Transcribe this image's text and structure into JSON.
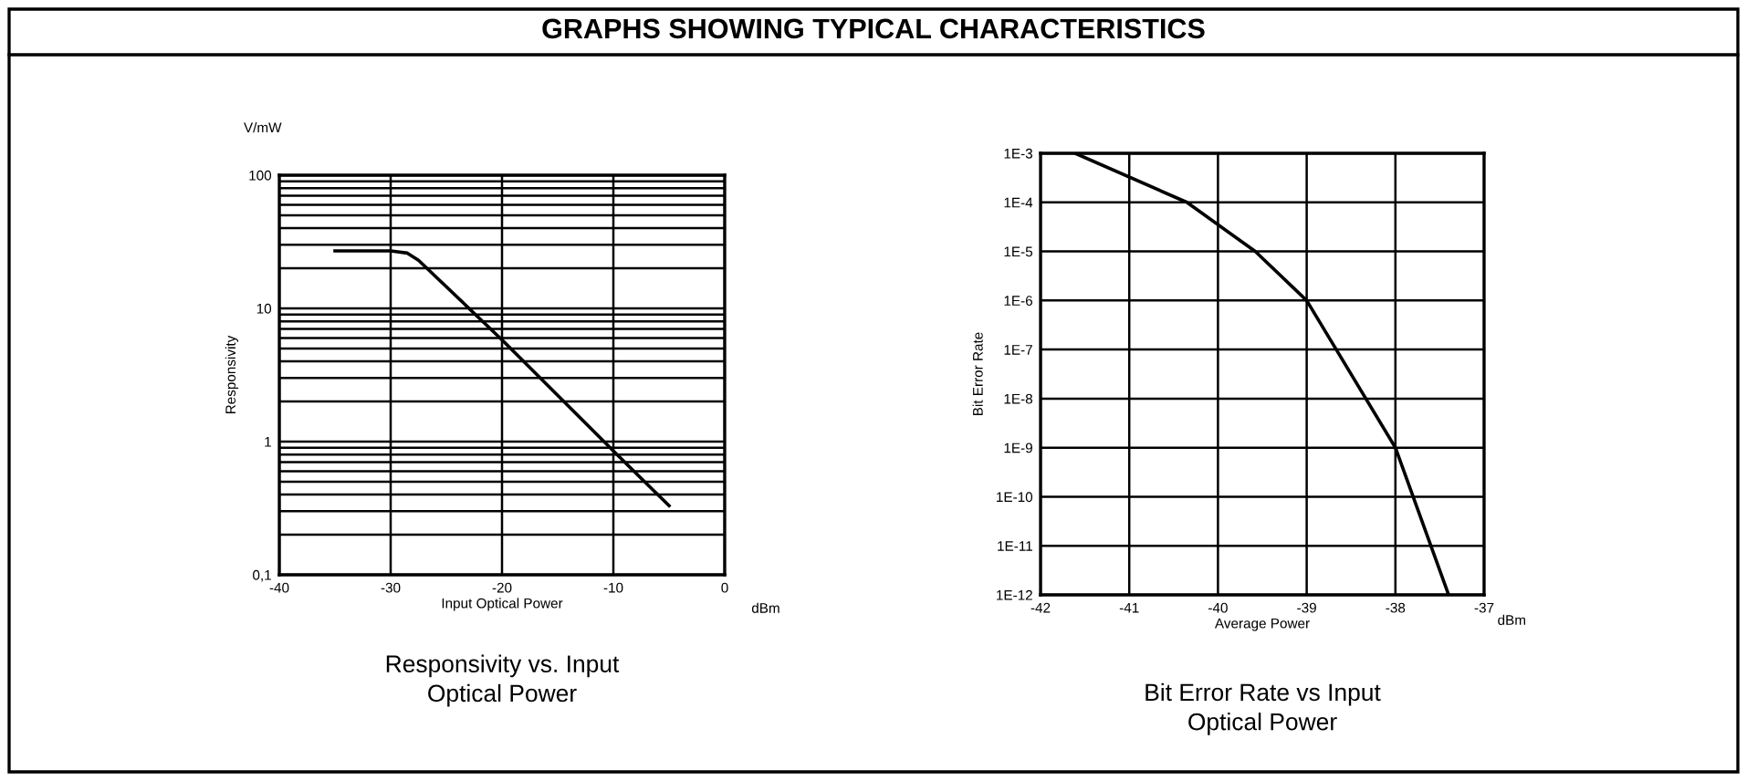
{
  "chart_data": [
    {
      "type": "line",
      "title": "Responsivity vs. Input\nOptical Power",
      "xlabel": "Input Optical Power",
      "ylabel": "Responsivity",
      "annotations": [
        "GRAPHS SHOWING TYPICAL CHARACTERISTICS",
        "V/mW",
        "dBm"
      ],
      "x": [
        -35,
        -30,
        -28.5,
        -27.5,
        -20,
        -10,
        -5
      ],
      "series": [
        {
          "color": "#000000",
          "values": [
            27,
            27,
            26,
            23,
            5.8,
            0.85,
            0.33
          ]
        }
      ],
      "log": "y",
      "xlim": [
        -40,
        0
      ],
      "xticks": [
        -40,
        -30,
        -20,
        -10,
        0
      ],
      "ylim": [
        0.1,
        100
      ],
      "yticks": [
        {
          "value": 0.1,
          "label": "0,1"
        },
        1,
        10,
        100
      ],
      "grid": true,
      "marker": "none",
      "line_style": "solid"
    },
    {
      "type": "line",
      "title": "Bit Error Rate vs Input\nOptical Power",
      "xlabel": "Average Power",
      "ylabel": "Bit Error Rate",
      "annotations": [
        "dBm"
      ],
      "x": [
        -41.61,
        -40.35,
        -39.58,
        -39.0,
        -38.0,
        -37.4
      ],
      "series": [
        {
          "color": "#000000",
          "values": [
            0.001,
            0.0001,
            1e-05,
            1e-06,
            1e-09,
            1e-12
          ]
        }
      ],
      "log": "y",
      "xlim": [
        -42,
        -37
      ],
      "xticks": [
        -42,
        -41,
        -40,
        -39,
        -38,
        -37
      ],
      "ylim": [
        1e-12,
        0.001
      ],
      "yticks": [
        {
          "value": 1e-12,
          "label": "1E-12"
        },
        {
          "value": 1e-11,
          "label": "1E-11"
        },
        {
          "value": 1e-10,
          "label": "1E-10"
        },
        {
          "value": 1e-09,
          "label": "1E-9"
        },
        {
          "value": 1e-08,
          "label": "1E-8"
        },
        {
          "value": 1e-07,
          "label": "1E-7"
        },
        {
          "value": 1e-06,
          "label": "1E-6"
        },
        {
          "value": 1e-05,
          "label": "1E-5"
        },
        {
          "value": 0.0001,
          "label": "1E-4"
        },
        {
          "value": 0.001,
          "label": "1E-3"
        }
      ],
      "grid": true,
      "marker": "none",
      "line_style": "solid"
    }
  ]
}
